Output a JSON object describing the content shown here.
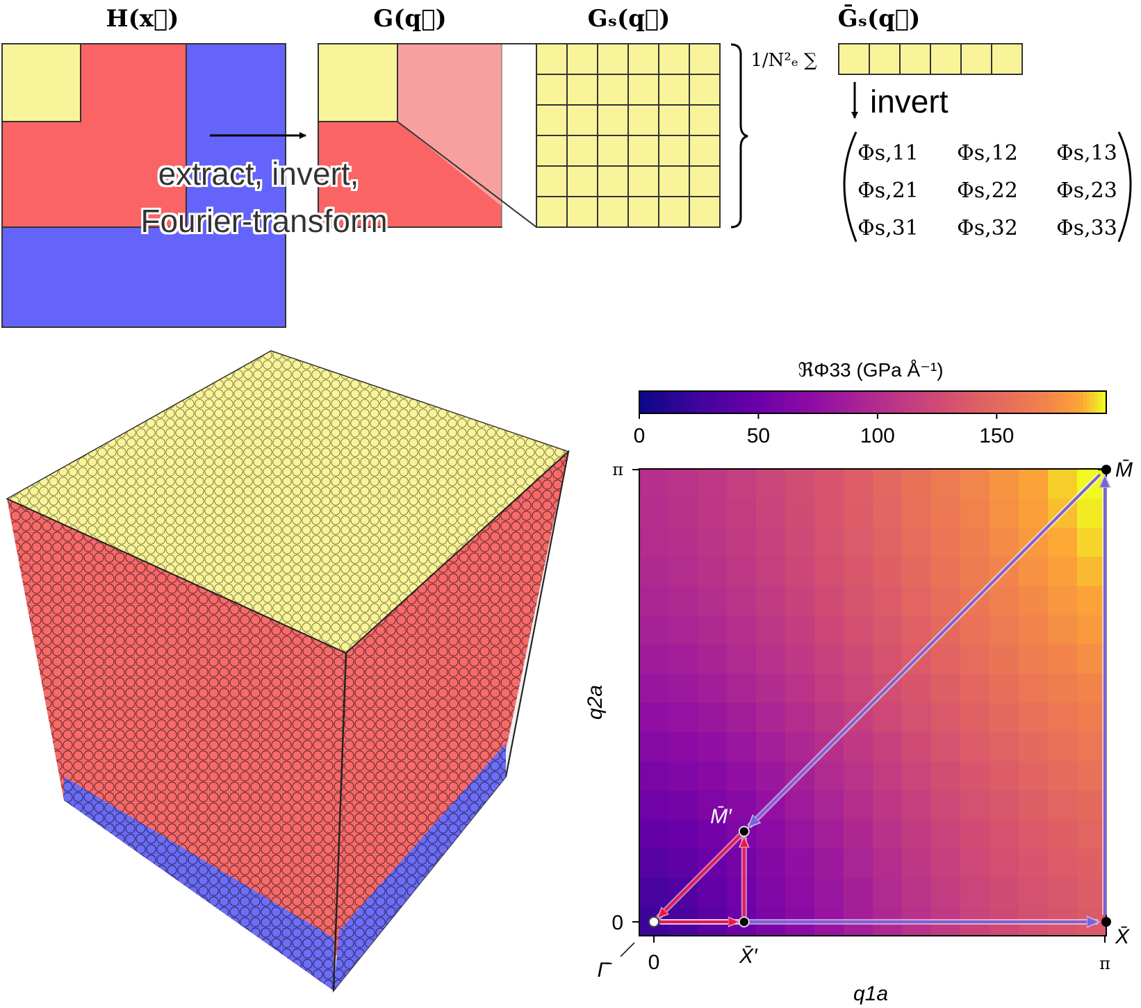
{
  "top_schematic": {
    "labels": {
      "h_x": "H(x⃗)",
      "g_q": "G(q⃗)",
      "gs_q": "Gₛ(q⃗)",
      "gbar_s_q": "Ḡₛ(q⃗)",
      "norm": "1/N²ₑ ∑"
    },
    "annotation_lines": [
      "extract, invert,",
      "Fourier-transform"
    ],
    "invert_label": "invert",
    "matrix_rows": [
      [
        "Φs,11",
        "Φs,12",
        "Φs,13"
      ],
      [
        "Φs,21",
        "Φs,22",
        "Φs,23"
      ],
      [
        "Φs,31",
        "Φs,32",
        "Φs,33"
      ]
    ],
    "colors": {
      "yellow": "#f9f49a",
      "red": "#fa6464",
      "pink": "#f8a0a0",
      "blue": "#6464fa"
    }
  },
  "heatmap": {
    "colorbar_title": "ℜΦ33 (GPa Å⁻¹)",
    "colorbar_ticks": [
      "0",
      "50",
      "100",
      "150"
    ],
    "colorbar_tick_values": [
      0,
      50,
      100,
      150
    ],
    "colorbar_range": [
      0,
      196
    ],
    "colormap": "plasma",
    "xlabel": "q1a",
    "ylabel": "q2a",
    "x_ticks": [
      "0",
      "π"
    ],
    "y_ticks": [
      "0",
      "π"
    ],
    "points": [
      {
        "label": "Γ̄",
        "q1": 0,
        "q2": 0
      },
      {
        "label": "X̄′",
        "q1": 0.2,
        "q2": 0
      },
      {
        "label": "M̄′",
        "q1": 0.2,
        "q2": 0.2
      },
      {
        "label": "X̄",
        "q1": 1,
        "q2": 0
      },
      {
        "label": "M̄",
        "q1": 1,
        "q2": 1
      }
    ],
    "paths": {
      "red": "Γ̄ → X̄′ → M̄′ → Γ̄",
      "purple": "Γ̄ → X̄ → M̄ → Γ̄"
    }
  },
  "cube": {
    "colors": {
      "top": "#f9f49a",
      "front": "#fa6464",
      "bottom": "#6464fa"
    }
  }
}
